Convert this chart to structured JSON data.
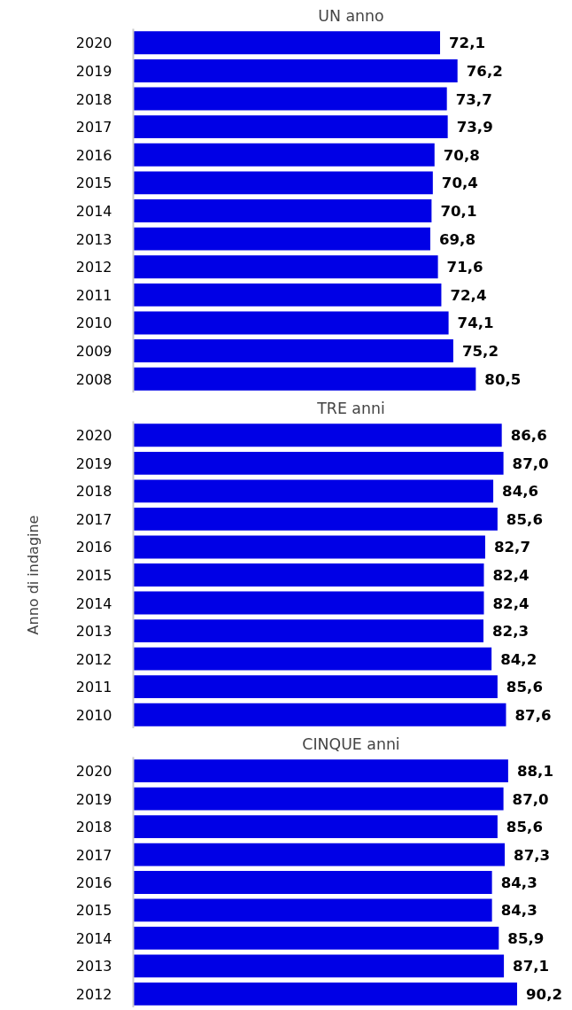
{
  "chart_data": [
    {
      "type": "bar",
      "orientation": "horizontal",
      "title": "UN anno",
      "color": "#0000e6",
      "categories": [
        "2020",
        "2019",
        "2018",
        "2017",
        "2016",
        "2015",
        "2014",
        "2013",
        "2012",
        "2011",
        "2010",
        "2009",
        "2008"
      ],
      "values": [
        72.1,
        76.2,
        73.7,
        73.9,
        70.8,
        70.4,
        70.1,
        69.8,
        71.6,
        72.4,
        74.1,
        75.2,
        80.5
      ],
      "value_labels": [
        "72,1",
        "76,2",
        "73,7",
        "73,9",
        "70,8",
        "70,4",
        "70,1",
        "69,8",
        "71,6",
        "72,4",
        "74,1",
        "75,2",
        "80,5"
      ]
    },
    {
      "type": "bar",
      "orientation": "horizontal",
      "title": "TRE anni",
      "ylabel": "Anno di indagine",
      "color": "#0000e6",
      "categories": [
        "2020",
        "2019",
        "2018",
        "2017",
        "2016",
        "2015",
        "2014",
        "2013",
        "2012",
        "2011",
        "2010"
      ],
      "values": [
        86.6,
        87.0,
        84.6,
        85.6,
        82.7,
        82.4,
        82.4,
        82.3,
        84.2,
        85.6,
        87.6
      ],
      "value_labels": [
        "86,6",
        "87,0",
        "84,6",
        "85,6",
        "82,7",
        "82,4",
        "82,4",
        "82,3",
        "84,2",
        "85,6",
        "87,6"
      ]
    },
    {
      "type": "bar",
      "orientation": "horizontal",
      "title": "CINQUE anni",
      "color": "#0000e6",
      "categories": [
        "2020",
        "2019",
        "2018",
        "2017",
        "2016",
        "2015",
        "2014",
        "2013",
        "2012"
      ],
      "values": [
        88.1,
        87.0,
        85.6,
        87.3,
        84.3,
        84.3,
        85.9,
        87.1,
        90.2
      ],
      "value_labels": [
        "88,1",
        "87,0",
        "85,6",
        "87,3",
        "84,3",
        "84,3",
        "85,9",
        "87,1",
        "90,2"
      ]
    }
  ]
}
